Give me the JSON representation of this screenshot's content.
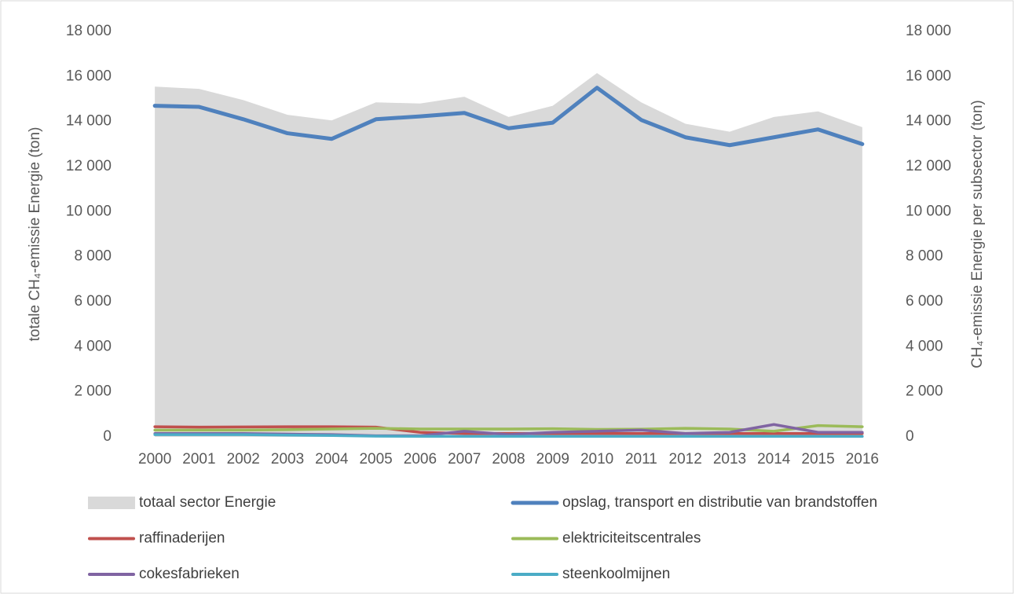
{
  "chart_data": {
    "type": "line",
    "y_label": "totale CH₄-emissie Energie (ton)",
    "y2_label": "CH₄-emissie Energie per subsector (ton)",
    "categories": [
      "2000",
      "2001",
      "2002",
      "2003",
      "2004",
      "2005",
      "2006",
      "2007",
      "2008",
      "2009",
      "2010",
      "2011",
      "2012",
      "2013",
      "2014",
      "2015",
      "2016"
    ],
    "ylim": [
      0,
      18000
    ],
    "yticks": [
      0,
      {
        "value": 2000,
        "label": "2 000"
      },
      {
        "value": 4000,
        "label": "4 000"
      },
      {
        "value": 6000,
        "label": "6 000"
      },
      {
        "value": 8000,
        "label": "8 000"
      },
      {
        "value": 10000,
        "label": "10 000"
      },
      {
        "value": 12000,
        "label": "12 000"
      },
      {
        "value": 14000,
        "label": "14 000"
      },
      {
        "value": 16000,
        "label": "16 000"
      },
      {
        "value": 18000,
        "label": "18 000"
      }
    ],
    "y2lim": [
      0,
      18000
    ],
    "y2ticks": [
      0,
      {
        "value": 2000,
        "label": "2 000"
      },
      {
        "value": 4000,
        "label": "4 000"
      },
      {
        "value": 6000,
        "label": "6 000"
      },
      {
        "value": 8000,
        "label": "8 000"
      },
      {
        "value": 10000,
        "label": "10 000"
      },
      {
        "value": 12000,
        "label": "12 000"
      },
      {
        "value": 14000,
        "label": "14 000"
      },
      {
        "value": 16000,
        "label": "16 000"
      },
      {
        "value": 18000,
        "label": "18 000"
      }
    ],
    "grid": false,
    "series": [
      {
        "name": "totaal sector Energie",
        "type": "area",
        "color": "#d9d9d9",
        "values": [
          15550,
          15450,
          14950,
          14300,
          14050,
          14850,
          14800,
          15100,
          14200,
          14700,
          16150,
          14850,
          13900,
          13550,
          14200,
          14450,
          13750
        ]
      },
      {
        "name": "opslag, transport en distributie van brandstoffen",
        "color": "#4f81bd",
        "axis": "y2",
        "values": [
          14700,
          14650,
          14100,
          13480,
          13230,
          14100,
          14230,
          14380,
          13700,
          13950,
          15500,
          14070,
          13300,
          12950,
          13300,
          13650,
          13000
        ]
      },
      {
        "name": "raffinaderijen",
        "color": "#c0504d",
        "axis": "y2",
        "values": [
          450,
          430,
          440,
          450,
          450,
          430,
          200,
          150,
          150,
          150,
          150,
          150,
          150,
          150,
          150,
          150,
          150
        ]
      },
      {
        "name": "elektriciteitscentrales",
        "color": "#9bbb59",
        "axis": "y2",
        "values": [
          300,
          300,
          300,
          320,
          350,
          380,
          350,
          350,
          350,
          360,
          330,
          340,
          380,
          350,
          250,
          500,
          450
        ]
      },
      {
        "name": "cokesfabrieken",
        "color": "#8064a2",
        "axis": "y2",
        "values": [
          150,
          150,
          150,
          120,
          100,
          50,
          50,
          250,
          100,
          200,
          250,
          300,
          150,
          200,
          550,
          200,
          200
        ]
      },
      {
        "name": "steenkoolmijnen",
        "color": "#4bacc6",
        "axis": "y2",
        "values": [
          100,
          100,
          100,
          80,
          60,
          30,
          20,
          20,
          20,
          20,
          20,
          20,
          20,
          20,
          20,
          20,
          20
        ]
      }
    ]
  }
}
